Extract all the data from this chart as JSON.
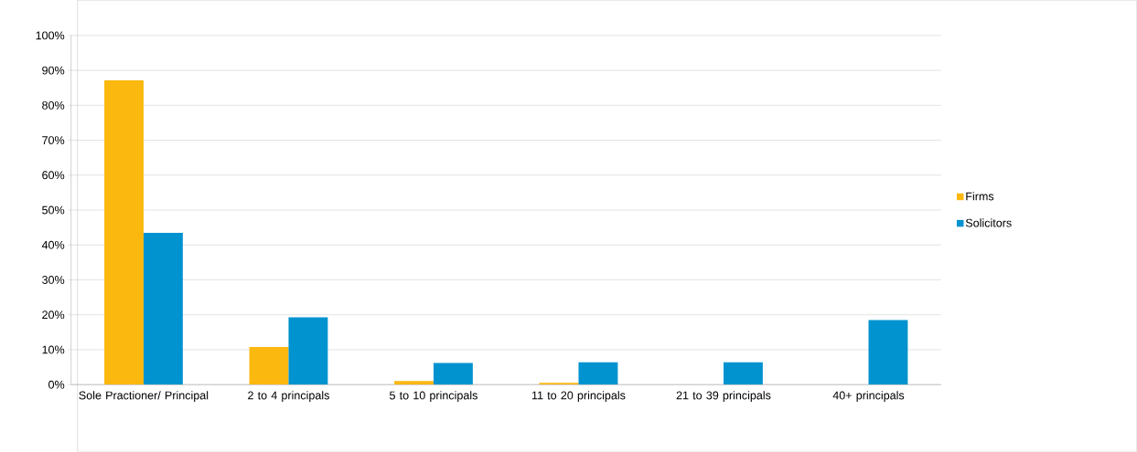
{
  "chart_data": {
    "type": "bar",
    "categories": [
      "Sole Practioner/ Principal",
      "2 to 4 principals",
      "5 to 10 principals",
      "11 to 20 principals",
      "21 to 39 principals",
      "40+ principals"
    ],
    "series": [
      {
        "name": "Firms",
        "color": "#fbb80f",
        "values": [
          87.2,
          10.8,
          1.0,
          0.5,
          0,
          0
        ]
      },
      {
        "name": "Solicitors",
        "color": "#0093d0",
        "values": [
          43.5,
          19.3,
          6.2,
          6.4,
          6.4,
          18.5
        ]
      }
    ],
    "ylim": [
      0,
      100
    ],
    "yticks": [
      {
        "value": 0,
        "label": "0%"
      },
      {
        "value": 10,
        "label": "10%"
      },
      {
        "value": 20,
        "label": "20%"
      },
      {
        "value": 30,
        "label": "30%"
      },
      {
        "value": 40,
        "label": "40%"
      },
      {
        "value": 50,
        "label": "50%"
      },
      {
        "value": 60,
        "label": "60%"
      },
      {
        "value": 70,
        "label": "70%"
      },
      {
        "value": 80,
        "label": "80%"
      },
      {
        "value": 90,
        "label": "90%"
      },
      {
        "value": 100,
        "label": "100%"
      }
    ],
    "grid": "y",
    "legend": "right"
  }
}
